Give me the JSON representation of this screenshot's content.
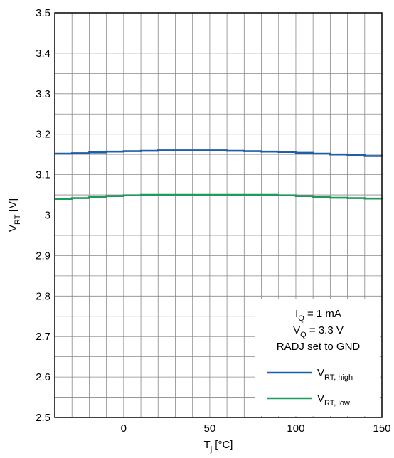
{
  "chart_data": {
    "type": "line",
    "title": "",
    "xlabel": {
      "main": "T",
      "sub": "j",
      "unit": " [°C]"
    },
    "ylabel": {
      "main": "V",
      "sub": "RT",
      "unit": " [V]"
    },
    "xlim": [
      -40,
      150
    ],
    "ylim": [
      2.5,
      3.5
    ],
    "x_major_ticks": [
      0,
      50,
      100,
      150
    ],
    "x_tick_labels": [
      "0",
      "50",
      "100",
      "150"
    ],
    "x_minor_step": 10,
    "y_ticks": [
      2.5,
      2.6,
      2.7,
      2.8,
      2.9,
      3.0,
      3.1,
      3.2,
      3.3,
      3.4,
      3.5
    ],
    "y_tick_labels": [
      "2.5",
      "2.6",
      "2.7",
      "2.8",
      "2.9",
      "3",
      "3.1",
      "3.2",
      "3.3",
      "3.4",
      "3.5"
    ],
    "y_minor_step": 0.05,
    "grid": true,
    "legend_position": "bottom-right",
    "annotations": [
      {
        "main": "I",
        "sub": "Q",
        "rest": " = 1 mA"
      },
      {
        "main": "V",
        "sub": "Q",
        "rest": " = 3.3 V"
      },
      {
        "main": "RADJ set to GND",
        "sub": "",
        "rest": ""
      }
    ],
    "series": [
      {
        "name": "V_RT, high",
        "label_main": "V",
        "label_sub": "RT, high",
        "color": "#1f5fa8",
        "x": [
          -40,
          -30,
          -20,
          -10,
          0,
          10,
          20,
          30,
          40,
          50,
          60,
          70,
          80,
          90,
          100,
          110,
          120,
          130,
          140,
          150
        ],
        "y": [
          3.152,
          3.153,
          3.155,
          3.157,
          3.158,
          3.159,
          3.16,
          3.16,
          3.16,
          3.16,
          3.159,
          3.158,
          3.157,
          3.156,
          3.154,
          3.152,
          3.15,
          3.148,
          3.146,
          3.145
        ]
      },
      {
        "name": "V_RT, low",
        "label_main": "V",
        "label_sub": "RT, low",
        "color": "#1f9a5a",
        "x": [
          -40,
          -30,
          -20,
          -10,
          0,
          10,
          20,
          30,
          40,
          50,
          60,
          70,
          80,
          90,
          100,
          110,
          120,
          130,
          140,
          150
        ],
        "y": [
          3.04,
          3.042,
          3.045,
          3.047,
          3.049,
          3.05,
          3.05,
          3.05,
          3.05,
          3.05,
          3.05,
          3.05,
          3.05,
          3.049,
          3.047,
          3.045,
          3.043,
          3.042,
          3.041,
          3.04
        ]
      }
    ]
  }
}
